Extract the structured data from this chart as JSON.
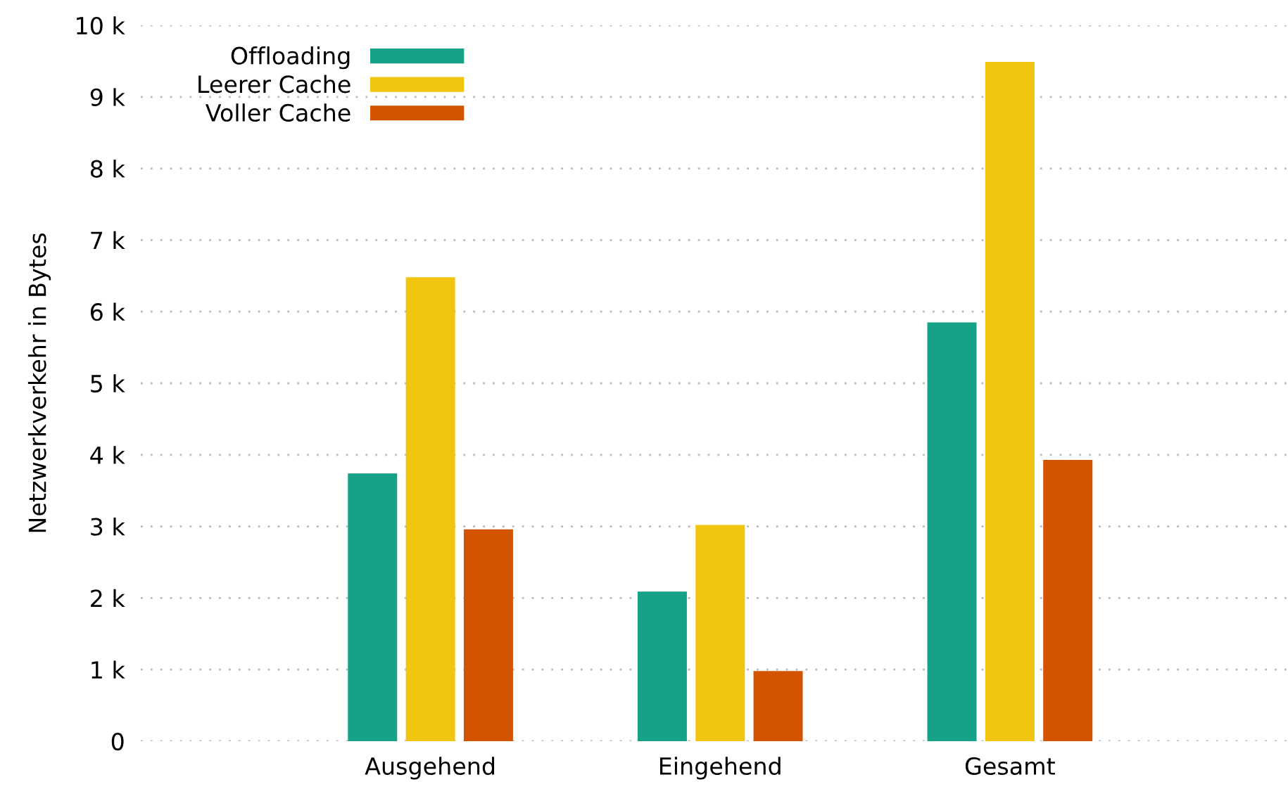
{
  "chart_data": {
    "type": "bar",
    "ylabel": "Netzwerkverkehr in Bytes",
    "categories": [
      "Ausgehend",
      "Eingehend",
      "Gesamt"
    ],
    "series": [
      {
        "name": "Offloading",
        "color": "#17a288",
        "values": [
          3740,
          2090,
          5850
        ]
      },
      {
        "name": "Leerer Cache",
        "color": "#f1c40f",
        "values": [
          6480,
          3020,
          9490
        ]
      },
      {
        "name": "Voller Cache",
        "color": "#d35400",
        "values": [
          2960,
          980,
          3930
        ]
      }
    ],
    "ylim": [
      0,
      10000
    ],
    "yticks": [
      {
        "value": 0,
        "label": "0"
      },
      {
        "value": 1000,
        "label": "1 k"
      },
      {
        "value": 2000,
        "label": "2 k"
      },
      {
        "value": 3000,
        "label": "3 k"
      },
      {
        "value": 4000,
        "label": "4 k"
      },
      {
        "value": 5000,
        "label": "5 k"
      },
      {
        "value": 6000,
        "label": "6 k"
      },
      {
        "value": 7000,
        "label": "7 k"
      },
      {
        "value": 8000,
        "label": "8 k"
      },
      {
        "value": 9000,
        "label": "9 k"
      },
      {
        "value": 10000,
        "label": "10 k"
      }
    ],
    "grid": "y",
    "legend": "top left"
  }
}
